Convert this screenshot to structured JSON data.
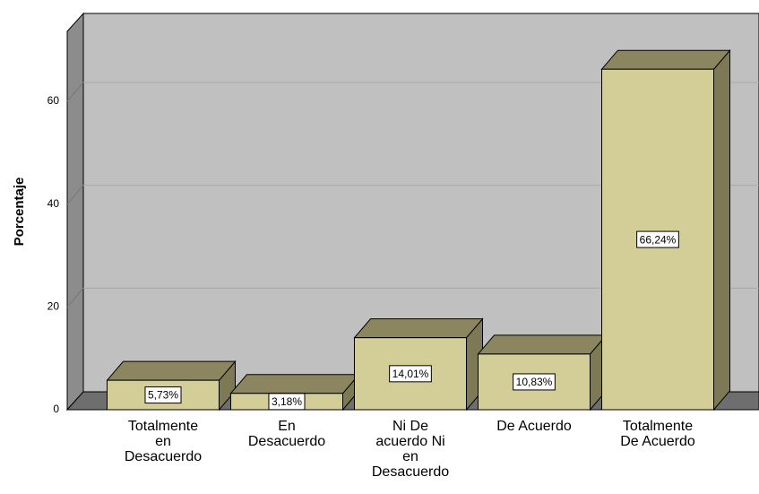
{
  "chart_data": {
    "type": "bar3d",
    "y_axis_label": "Porcentaje",
    "categories": [
      "Totalmente en Desacuerdo",
      "En Desacuerdo",
      "Ni De acuerdo Ni en Desacuerdo",
      "De Acuerdo",
      "Totalmente De Acuerdo"
    ],
    "values": [
      5.73,
      3.18,
      14.01,
      10.83,
      66.24
    ],
    "value_labels": [
      "5,73%",
      "3,18%",
      "14,01%",
      "10,83%",
      "66,24%"
    ],
    "color": "#d3cd97",
    "ylim": [
      0,
      73.6
    ],
    "yticks": [
      0,
      20,
      40,
      60
    ],
    "grid": true
  }
}
